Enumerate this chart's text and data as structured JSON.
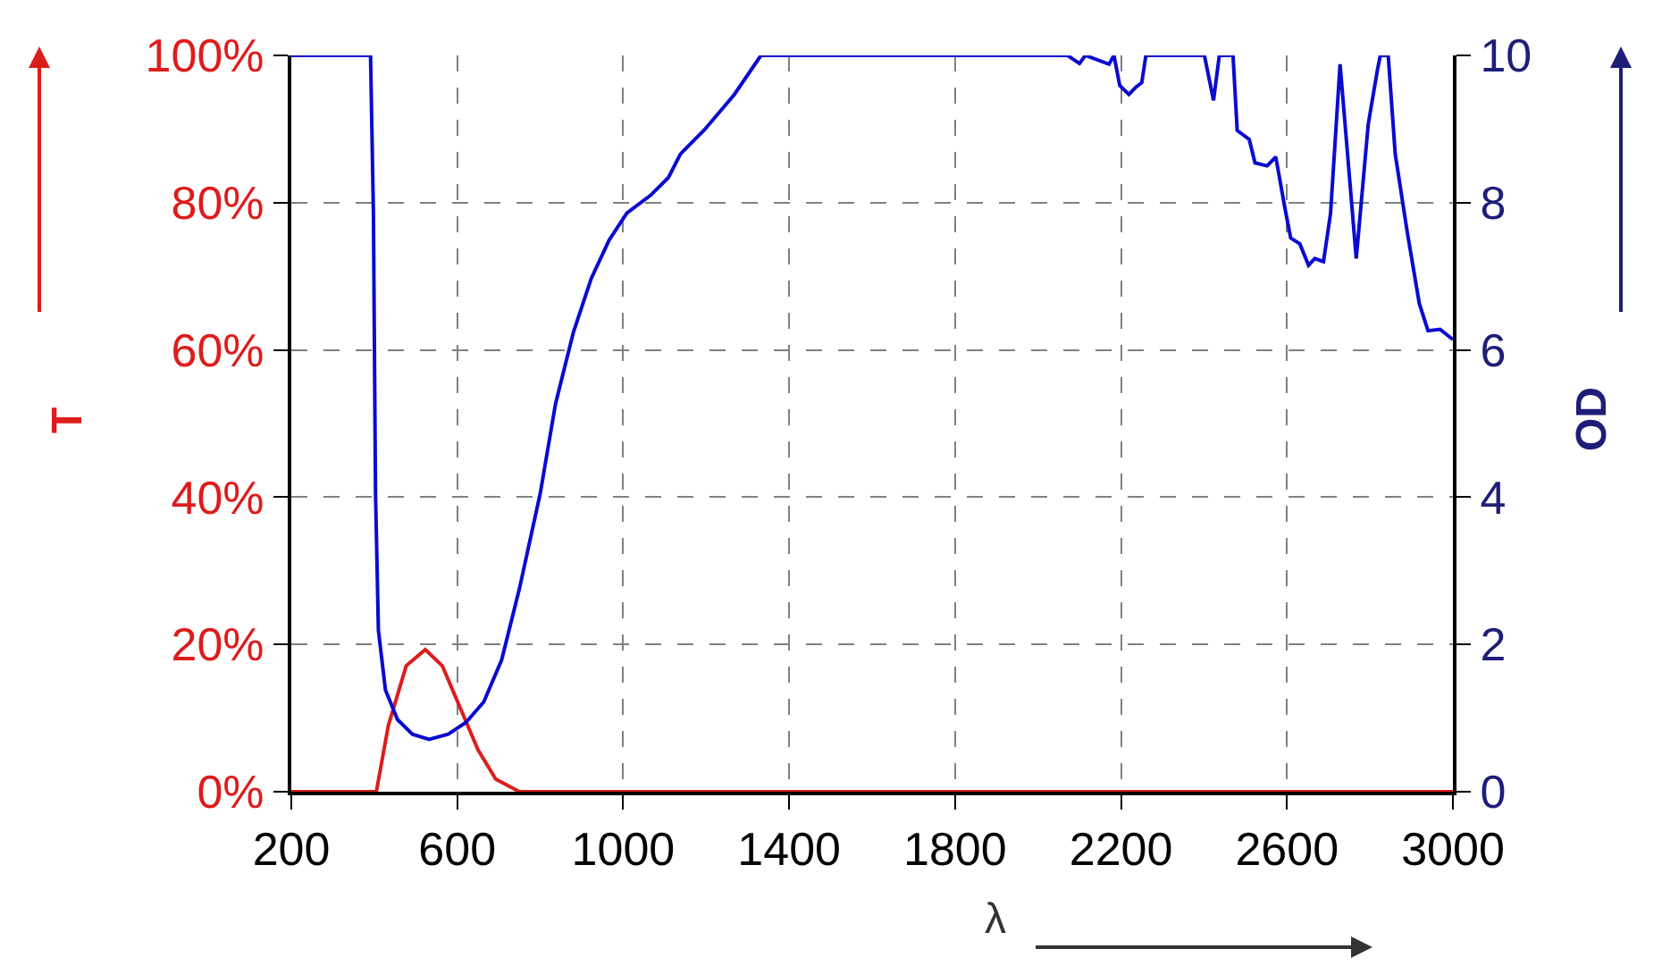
{
  "chart_data": {
    "type": "line",
    "xlabel": "λ",
    "ylabel": "T",
    "y2label": "OD",
    "xlim": [
      200,
      3000
    ],
    "xticks": [
      200,
      600,
      1000,
      1400,
      1800,
      2200,
      2600,
      3000
    ],
    "ylim": [
      0,
      100
    ],
    "yticks": [
      {
        "value": 0,
        "label": "0%"
      },
      {
        "value": 20,
        "label": "20%"
      },
      {
        "value": 40,
        "label": "40%"
      },
      {
        "value": 60,
        "label": "60%"
      },
      {
        "value": 80,
        "label": "80%"
      },
      {
        "value": 100,
        "label": "100%"
      }
    ],
    "y2lim": [
      0,
      10
    ],
    "y2ticks": [
      0,
      2,
      4,
      6,
      8,
      10
    ],
    "grid": true,
    "legend": false,
    "marker": "none",
    "line_style": "solid",
    "series": [
      {
        "color": "#dd1c1c",
        "x": [
          200,
          405,
          434,
          477,
          523,
          564,
          607,
          650,
          693,
          750,
          3000
        ],
        "values": [
          0,
          0,
          9,
          17.1,
          19.3,
          17.1,
          11.4,
          5.7,
          1.7,
          0,
          0
        ]
      },
      {
        "color": "#0a0ad0",
        "axis": "y2",
        "x": [
          200,
          391,
          398,
          403,
          410,
          427,
          456,
          492,
          532,
          578,
          621,
          664,
          707,
          750,
          800,
          837,
          880,
          923,
          966,
          1009,
          1066,
          1109,
          1138,
          1196,
          1268,
          1332,
          2071,
          2100,
          2114,
          2171,
          2183,
          2197,
          2219,
          2236,
          2250,
          2260,
          2401,
          2423,
          2437,
          2470,
          2480,
          2509,
          2523,
          2552,
          2573,
          2595,
          2609,
          2631,
          2652,
          2667,
          2688,
          2705,
          2728,
          2746,
          2767,
          2796,
          2818,
          2825,
          2844,
          2861,
          2890,
          2919,
          2940,
          2969,
          3000
        ],
        "values": [
          10,
          10,
          7.85,
          4.05,
          2.19,
          1.38,
          0.98,
          0.78,
          0.71,
          0.78,
          0.94,
          1.22,
          1.79,
          2.76,
          4.05,
          5.27,
          6.24,
          6.97,
          7.49,
          7.86,
          8.1,
          8.34,
          8.66,
          8.99,
          9.47,
          10,
          10,
          9.89,
          10,
          9.88,
          10,
          9.59,
          9.47,
          9.57,
          9.63,
          10,
          10,
          9.39,
          10,
          10,
          8.98,
          8.86,
          8.54,
          8.5,
          8.62,
          7.93,
          7.52,
          7.44,
          7.15,
          7.24,
          7.2,
          7.85,
          9.88,
          8.66,
          7.24,
          9.07,
          9.8,
          10,
          10,
          8.66,
          7.6,
          6.63,
          6.26,
          6.28,
          6.14
        ]
      }
    ]
  }
}
